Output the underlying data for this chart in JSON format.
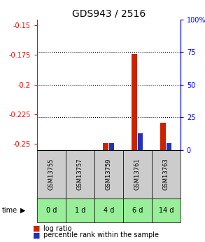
{
  "title": "GDS943 / 2516",
  "samples": [
    "GSM13755",
    "GSM13757",
    "GSM13759",
    "GSM13761",
    "GSM13763"
  ],
  "time_labels": [
    "0 d",
    "1 d",
    "4 d",
    "6 d",
    "14 d"
  ],
  "log_ratio": [
    null,
    null,
    -0.249,
    -0.174,
    -0.232
  ],
  "percentile_rank": [
    null,
    null,
    5.5,
    13.0,
    5.5
  ],
  "ylim_left": [
    -0.255,
    -0.145
  ],
  "ylim_right": [
    0,
    100
  ],
  "yticks_left": [
    -0.25,
    -0.225,
    -0.2,
    -0.175,
    -0.15
  ],
  "yticks_right": [
    0,
    25,
    50,
    75,
    100
  ],
  "bar_width": 0.18,
  "log_ratio_color": "#cc2200",
  "percentile_color": "#2233bb",
  "sample_bg_color": "#cccccc",
  "time_bg_color": "#99ee99",
  "title_fontsize": 10,
  "tick_fontsize": 7,
  "legend_fontsize": 7
}
